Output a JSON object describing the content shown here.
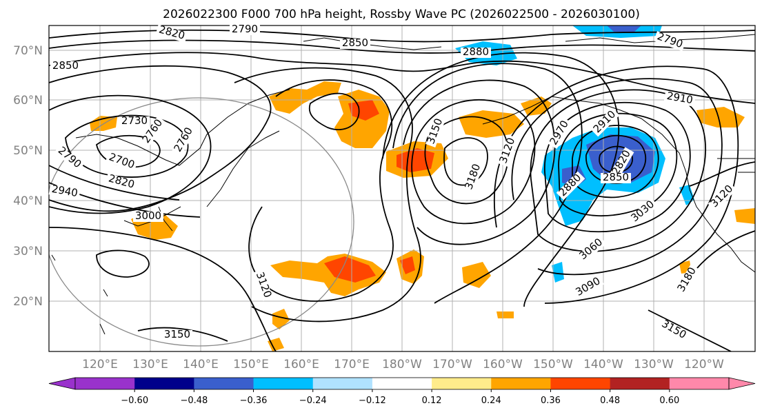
{
  "title": "2026022300 F000 700 hPa height, Rossby Wave PC (2026022500 - 2026030100)",
  "lat_labels": [
    "70°N",
    "60°N",
    "50°N",
    "40°N",
    "30°N",
    "20°N"
  ],
  "lon_labels": [
    "120°E",
    "130°E",
    "140°E",
    "150°E",
    "160°E",
    "170°E",
    "180°W",
    "170°W",
    "160°W",
    "150°W",
    "140°W",
    "130°W",
    "120°W"
  ],
  "contour_labels": [
    "2820",
    "2790",
    "2850",
    "2880",
    "2790",
    "2760",
    "2850",
    "2730",
    "2760",
    "2790",
    "2700",
    "2820",
    "2940",
    "3000",
    "3150",
    "3120",
    "3180",
    "3120",
    "2970",
    "2910",
    "2820",
    "2880",
    "2850",
    "3030",
    "3060",
    "3090",
    "3120",
    "3180",
    "3150",
    "2910",
    "3150"
  ],
  "colorbar": {
    "ticks": [
      "−0.60",
      "−0.48",
      "−0.36",
      "−0.24",
      "−0.12",
      "0.12",
      "0.24",
      "0.36",
      "0.48",
      "0.60"
    ],
    "colors": [
      "#9932CC",
      "#00008B",
      "#3A5FCD",
      "#00BFFF",
      "#B0E2FF",
      "#FFFFFF",
      "#FFEC8B",
      "#FFA500",
      "#FF4500",
      "#B22222",
      "#FF88AA"
    ]
  },
  "anomaly_colors": {
    "light_yellow": "#FFEC8B",
    "orange": "#FFA500",
    "red_orange": "#FF4500",
    "dark_red": "#B22222",
    "light_blue": "#B0E2FF",
    "sky_blue": "#00BFFF",
    "royal_blue": "#3A5FCD",
    "navy": "#00008B"
  }
}
